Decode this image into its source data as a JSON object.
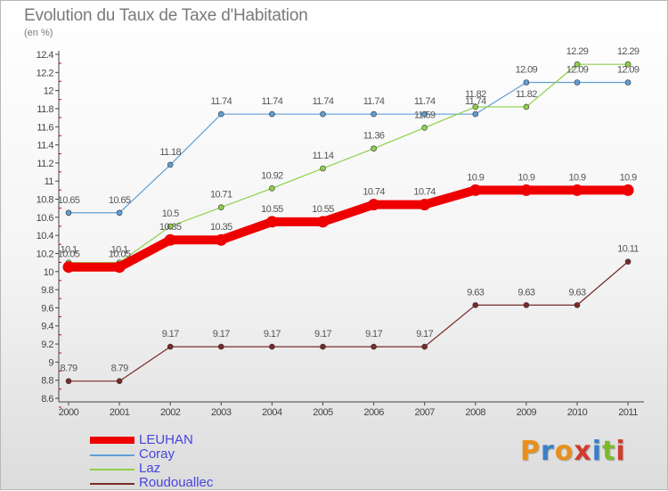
{
  "header": {
    "title": "Evolution du Taux de Taxe d'Habitation",
    "subtitle": "(en %)"
  },
  "logo": {
    "text": "Proxiti",
    "colors": [
      "#e8901c",
      "#3a7fc8",
      "#e8901c",
      "#d23c2c",
      "#3a7fc8",
      "#7cb82c",
      "#d23c2c"
    ]
  },
  "chart_data": {
    "type": "line",
    "title": "Evolution du Taux de Taxe d'Habitation",
    "subtitle": "(en %)",
    "x": [
      "2000",
      "2001",
      "2002",
      "2003",
      "2004",
      "2005",
      "2006",
      "2007",
      "2008",
      "2009",
      "2010",
      "2011"
    ],
    "ylim": [
      8.6,
      12.4
    ],
    "y_ticks": [
      "8.6",
      "8.8",
      "9",
      "9.2",
      "9.4",
      "9.6",
      "9.8",
      "10",
      "10.2",
      "10.4",
      "10.6",
      "10.8",
      "11",
      "11.2",
      "11.4",
      "11.6",
      "11.8",
      "12",
      "12.2",
      "12.4"
    ],
    "grid": false,
    "legend_position": "bottom-left",
    "series": [
      {
        "name": "LEUHAN",
        "color": "#ee0000",
        "thick": true,
        "values": [
          10.05,
          10.05,
          10.35,
          10.35,
          10.55,
          10.55,
          10.74,
          10.74,
          10.9,
          10.9,
          10.9,
          10.9
        ],
        "labels": [
          "10.05",
          "10.05",
          "10.35",
          "10.35",
          "10.55",
          "10.55",
          "10.74",
          "10.74",
          "10.9",
          "10.9",
          "10.9",
          "10.9"
        ]
      },
      {
        "name": "Coray",
        "color": "#5f9fd6",
        "thick": false,
        "values": [
          10.65,
          10.65,
          11.18,
          11.74,
          11.74,
          11.74,
          11.74,
          11.74,
          11.74,
          12.09,
          12.09,
          12.09
        ],
        "labels": [
          "10.65",
          "10.65",
          "11.18",
          "11.74",
          "11.74",
          "11.74",
          "11.74",
          "11.74",
          "11.74",
          "12.09",
          "12.09",
          "12.09"
        ]
      },
      {
        "name": "Laz",
        "color": "#8ed04a",
        "thick": false,
        "values": [
          10.1,
          10.1,
          10.5,
          10.71,
          10.92,
          11.14,
          11.36,
          11.59,
          11.82,
          11.82,
          12.29,
          12.29
        ],
        "labels": [
          "10.1",
          "10.1",
          "10.5",
          "10.71",
          "10.92",
          "11.14",
          "11.36",
          "11.59",
          "11.82",
          "11.82",
          "12.29",
          "12.29"
        ]
      },
      {
        "name": "Roudouallec",
        "color": "#7a2a2a",
        "thick": false,
        "values": [
          8.79,
          8.79,
          9.17,
          9.17,
          9.17,
          9.17,
          9.17,
          9.17,
          9.63,
          9.63,
          9.63,
          10.11
        ],
        "labels": [
          "8.79",
          "8.79",
          "9.17",
          "9.17",
          "9.17",
          "9.17",
          "9.17",
          "9.17",
          "9.63",
          "9.63",
          "9.63",
          "10.11"
        ]
      }
    ]
  }
}
